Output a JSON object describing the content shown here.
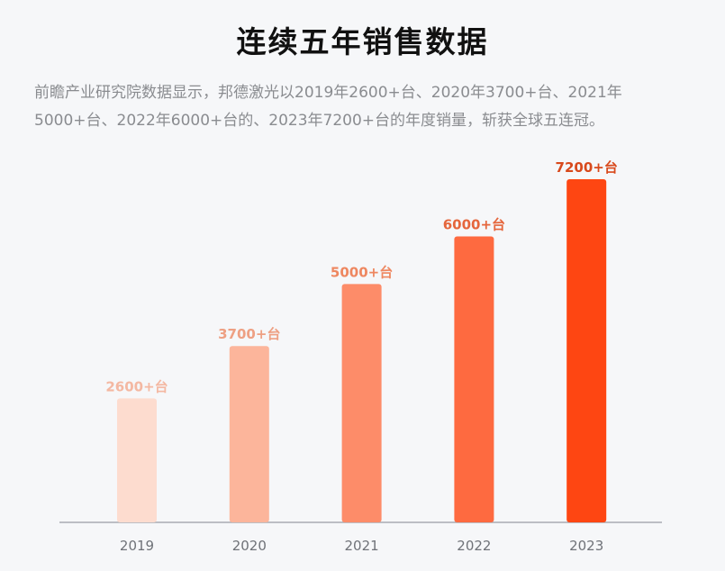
{
  "title": "连续五年销售数据",
  "description": "前瞻产业研究院数据显示，邦德激光以2019年2600+台、2020年3700+台、2021年5000+台、2022年6000+台的、2023年7200+台的年度销量，斩获全球五连冠。",
  "chart_data": {
    "type": "bar",
    "title": "连续五年销售数据",
    "categories": [
      "2019",
      "2020",
      "2021",
      "2022",
      "2023"
    ],
    "values": [
      2600,
      3700,
      5000,
      6000,
      7200
    ],
    "data_labels": [
      "2600+台",
      "3700+台",
      "5000+台",
      "6000+台",
      "7200+台"
    ],
    "bar_colors": [
      "#fddccf",
      "#fcb59b",
      "#fd8c69",
      "#fe6a40",
      "#fe4612"
    ],
    "label_colors": [
      "#f4b8a2",
      "#eea083",
      "#ee8760",
      "#e5663c",
      "#d8491c"
    ],
    "xlabel": "",
    "ylabel": "",
    "ylim": [
      0,
      7200
    ],
    "grid": false
  }
}
